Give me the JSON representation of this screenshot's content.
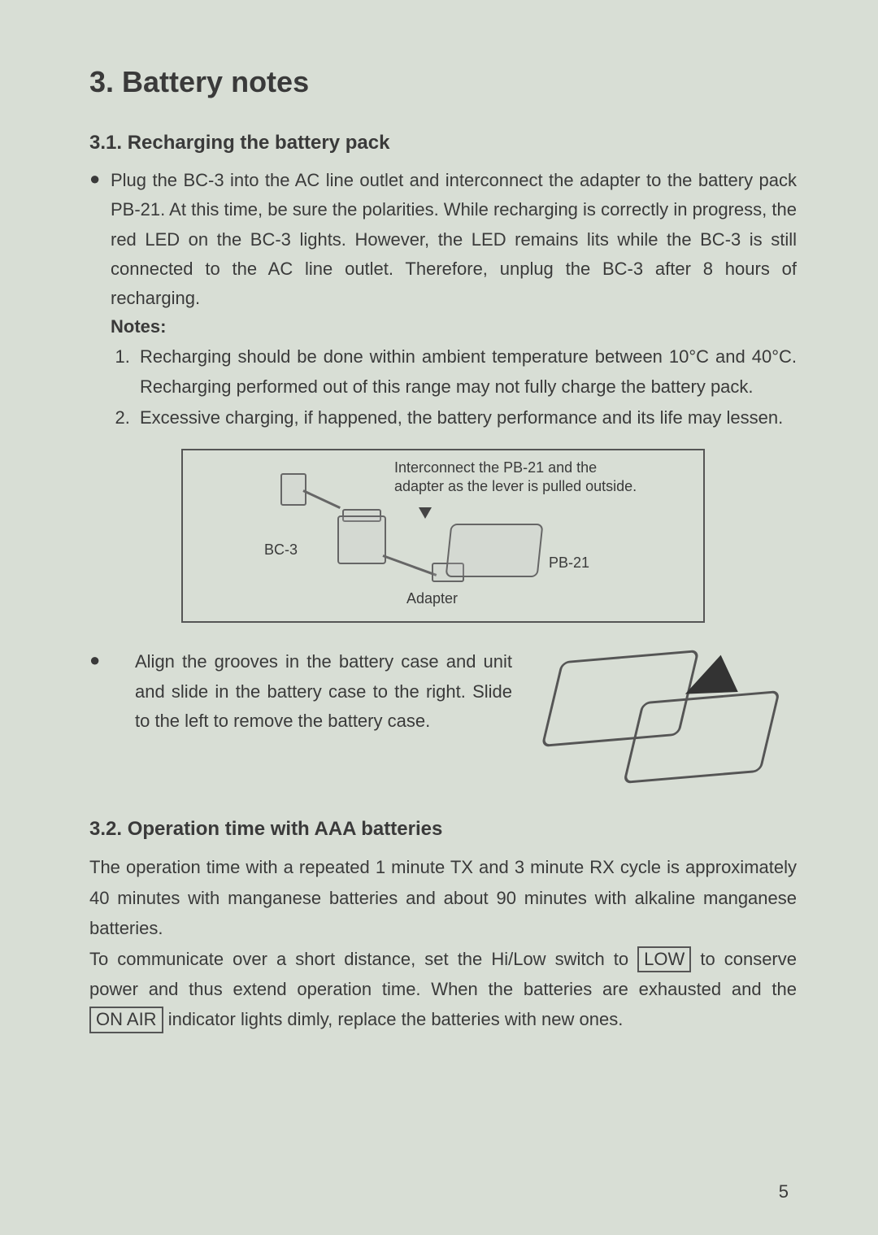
{
  "colors": {
    "page_bg": "#d8ded5",
    "text": "#3a3a3a",
    "border": "#555555",
    "arrow": "#333333"
  },
  "typography": {
    "title_fontsize_pt": 27,
    "subsection_fontsize_pt": 18,
    "body_fontsize_pt": 16,
    "diagram_label_fontsize_pt": 13
  },
  "section": {
    "number": "3.",
    "title": "Battery notes",
    "full": "3. Battery notes"
  },
  "sub31": {
    "heading": "3.1. Recharging the battery pack",
    "para1": "Plug the BC-3 into the AC line outlet and interconnect the adapter to the battery pack PB-21. At this time, be sure the polarities. While recharging is correctly in progress, the red LED on the BC-3 lights. However, the LED remains lits while the BC-3 is still connected to the AC line outlet. Therefore, unplug the BC-3 after 8 hours of recharging.",
    "notes_label": "Notes:",
    "notes": [
      "Recharging should be done within ambient temperature between 10°C and 40°C. Recharging performed out of this range may not fully charge the battery pack.",
      "Excessive charging, if happened, the battery performance and its life may lessen."
    ]
  },
  "diagram_connect": {
    "caption": "Interconnect the PB-21 and the adapter as the lever is pulled outside.",
    "label_bc3": "BC-3",
    "label_pb21": "PB-21",
    "label_adapter": "Adapter",
    "box_border_color": "#555555",
    "line_color": "#666666"
  },
  "install": {
    "text": "Align the grooves in the battery case and unit and slide in the battery case to the right. Slide to the left to remove the battery case.",
    "arrow_color": "#333333",
    "outline_color": "#555555"
  },
  "sub32": {
    "heading": "3.2. Operation time with AAA batteries",
    "para_a": "The operation time with a repeated 1 minute TX and 3 minute RX cycle is approximately 40 minutes with manganese batteries and about 90 minutes with alkaline manganese batteries.",
    "para_b_pre": "To communicate over a short distance, set the Hi/Low switch to ",
    "low_box": "LOW",
    "para_b_mid": " to conserve power and thus extend operation time. When the batteries are exhausted and the ",
    "onair_box": "ON AIR",
    "para_b_post": " indicator lights dimly, replace the batteries with new ones."
  },
  "page_number": "5"
}
